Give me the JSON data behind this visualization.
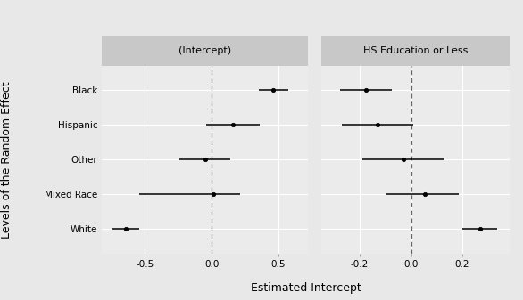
{
  "panel1_title": "(Intercept)",
  "panel2_title": "HS Education or Less",
  "ylabel": "Levels of the Random Effect",
  "xlabel": "Estimated Intercept",
  "categories": [
    "Black",
    "Hispanic",
    "Other",
    "Mixed Race",
    "White"
  ],
  "panel1": {
    "points": [
      0.46,
      0.16,
      -0.05,
      0.01,
      -0.64
    ],
    "lo": [
      0.35,
      -0.04,
      -0.24,
      -0.54,
      -0.74
    ],
    "hi": [
      0.57,
      0.36,
      0.14,
      0.21,
      -0.54
    ]
  },
  "panel2": {
    "points": [
      -0.175,
      -0.13,
      -0.03,
      0.055,
      0.27
    ],
    "lo": [
      -0.275,
      -0.27,
      -0.19,
      -0.1,
      0.2
    ],
    "hi": [
      -0.075,
      0.01,
      0.13,
      0.185,
      0.335
    ]
  },
  "panel1_xlim": [
    -0.82,
    0.72
  ],
  "panel2_xlim": [
    -0.35,
    0.385
  ],
  "panel1_xticks": [
    -0.5,
    0.0,
    0.5
  ],
  "panel2_xticks": [
    -0.2,
    0.0,
    0.2
  ],
  "outer_bg": "#e8e8e8",
  "panel_bg": "#ebebeb",
  "strip_bg": "#c8c8c8",
  "grid_color": "#ffffff",
  "point_color": "#000000",
  "line_color": "#000000",
  "dashed_color": "#666666",
  "text_color": "#000000",
  "strip_fontsize": 8,
  "tick_fontsize": 7.5,
  "label_fontsize": 9,
  "ylabel_fontsize": 9
}
